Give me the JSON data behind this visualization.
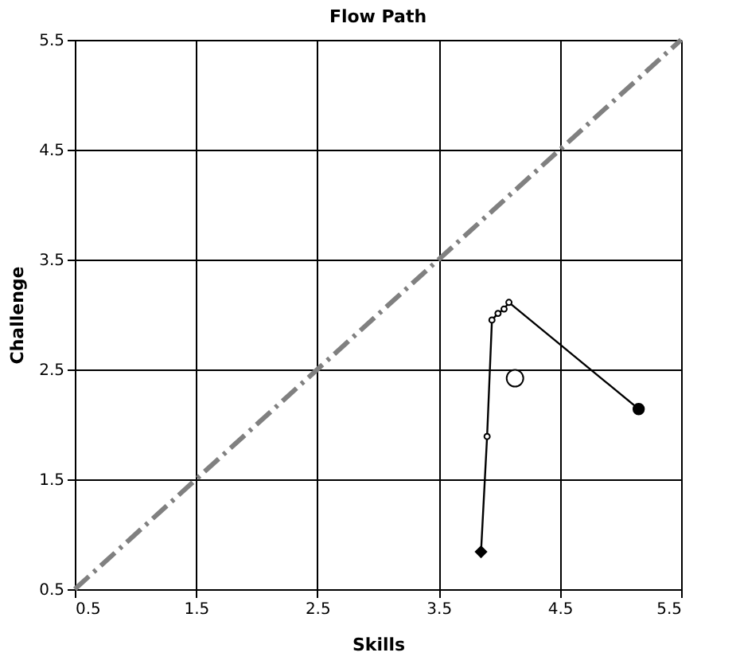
{
  "chart_data": {
    "type": "line",
    "title": "Flow Path",
    "xlabel": "Skills",
    "ylabel": "Challenge",
    "xlim": [
      0.5,
      5.5
    ],
    "ylim": [
      0.5,
      5.5
    ],
    "xticks": [
      0.5,
      1.5,
      2.5,
      3.5,
      4.5,
      5.5
    ],
    "yticks": [
      0.5,
      1.5,
      2.5,
      3.5,
      4.5,
      5.5
    ],
    "grid": true,
    "series": [
      {
        "type": "line",
        "x": [
          0.5,
          5.5
        ],
        "values": [
          0.5,
          5.5
        ],
        "color": "#808080",
        "line_style": "dashed",
        "marker": "none"
      },
      {
        "x": [
          3.85,
          3.9,
          3.94,
          3.99,
          4.04,
          4.08,
          5.15
        ],
        "values": [
          0.84,
          1.89,
          2.95,
          3.01,
          3.05,
          3.11,
          2.14
        ],
        "color": "#000000",
        "line_style": "solid",
        "marker": "circle"
      },
      {
        "type": "scatter",
        "x": [
          3.85
        ],
        "values": [
          0.84
        ],
        "color": "#000000",
        "marker": "diamond"
      },
      {
        "type": "scatter",
        "x": [
          5.15
        ],
        "values": [
          2.14
        ],
        "color": "#000000",
        "marker": "circle"
      },
      {
        "type": "scatter",
        "x": [
          4.13
        ],
        "values": [
          2.42
        ],
        "color": "#ffffff",
        "marker": "circle"
      }
    ]
  }
}
